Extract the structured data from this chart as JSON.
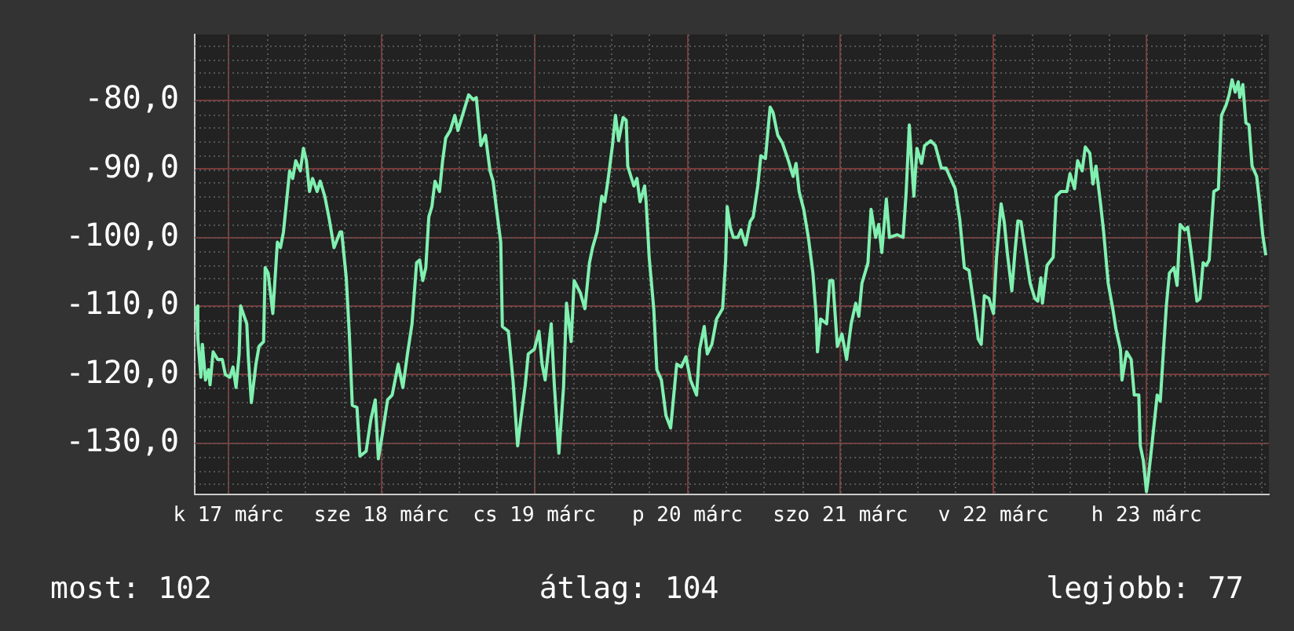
{
  "chart_data": {
    "type": "line",
    "x": [
      "--03-17T06:58",
      "--03-17T07:12",
      "--03-17T07:41",
      "--03-17T07:55",
      "--03-17T08:24",
      "--03-17T08:53",
      "--03-17T09:07",
      "--03-17T09:36",
      "--03-17T10:19",
      "--03-17T11:02",
      "--03-17T11:31",
      "--03-17T12:14",
      "--03-17T12:43",
      "--03-17T13:12",
      "--03-17T13:41",
      "--03-17T13:55",
      "--03-17T14:53",
      "--03-17T15:07",
      "--03-17T15:36",
      "--03-17T16:19",
      "--03-17T16:48",
      "--03-17T17:31",
      "--03-17T17:46",
      "--03-17T18:14",
      "--03-17T18:58",
      "--03-17T19:41",
      "--03-17T20:10",
      "--03-17T20:38",
      "--03-17T21:07",
      "--03-17T21:36",
      "--03-17T22:05",
      "--03-17T22:34",
      "--03-17T23:17",
      "--03-17T23:46",
      "--03-18T00:14",
      "--03-18T00:43",
      "--03-18T01:12",
      "--03-18T01:55",
      "--03-18T02:24",
      "--03-18T03:07",
      "--03-18T03:50",
      "--03-18T04:34",
      "--03-18T05:31",
      "--03-18T05:46",
      "--03-18T06:29",
      "--03-18T06:58",
      "--03-18T07:26",
      "--03-18T08:10",
      "--03-18T08:38",
      "--03-18T09:36",
      "--03-18T10:19",
      "--03-18T11:02",
      "--03-18T11:31",
      "--03-18T12:14",
      "--03-18T12:58",
      "--03-18T13:41",
      "--03-18T14:38",
      "--03-18T15:22",
      "--03-18T16:05",
      "--03-18T16:48",
      "--03-18T17:31",
      "--03-18T18:00",
      "--03-18T18:29",
      "--03-18T18:58",
      "--03-18T19:26",
      "--03-18T19:55",
      "--03-18T20:24",
      "--03-18T21:07",
      "--03-18T21:36",
      "--03-18T22:05",
      "--03-18T22:48",
      "--03-18T23:31",
      "--03-19T00:00",
      "--03-19T00:58",
      "--03-19T01:41",
      "--03-19T02:24",
      "--03-19T02:53",
      "--03-19T03:36",
      "--03-19T04:19",
      "--03-19T05:02",
      "--03-19T05:31",
      "--03-19T06:00",
      "--03-19T06:43",
      "--03-19T06:58",
      "--03-19T07:55",
      "--03-19T08:38",
      "--03-19T09:22",
      "--03-19T09:50",
      "--03-19T10:34",
      "--03-19T11:02",
      "--03-19T12:00",
      "--03-19T12:43",
      "--03-19T13:12",
      "--03-19T13:41",
      "--03-19T14:38",
      "--03-19T15:07",
      "--03-19T15:50",
      "--03-19T16:34",
      "--03-19T17:02",
      "--03-19T17:46",
      "--03-19T18:14",
      "--03-19T19:12",
      "--03-19T19:55",
      "--03-19T20:38",
      "--03-19T21:07",
      "--03-19T21:50",
      "--03-19T22:34",
      "--03-19T23:02",
      "--03-19T23:31",
      "--03-20T00:14",
      "--03-20T00:43",
      "--03-20T01:12",
      "--03-20T01:55",
      "--03-20T02:24",
      "--03-20T02:38",
      "--03-20T03:36",
      "--03-20T04:05",
      "--03-20T04:34",
      "--03-20T05:17",
      "--03-20T05:31",
      "--03-20T06:00",
      "--03-20T06:43",
      "--03-20T07:12",
      "--03-20T07:55",
      "--03-20T08:38",
      "--03-20T09:22",
      "--03-20T10:19",
      "--03-20T11:02",
      "--03-20T11:46",
      "--03-20T12:29",
      "--03-20T13:26",
      "--03-20T13:55",
      "--03-20T14:38",
      "--03-20T15:07",
      "--03-20T15:50",
      "--03-20T16:34",
      "--03-20T17:31",
      "--03-20T18:00",
      "--03-20T18:14",
      "--03-20T18:43",
      "--03-20T19:12",
      "--03-20T19:55",
      "--03-20T20:24",
      "--03-20T21:07",
      "--03-20T21:50",
      "--03-20T22:19",
      "--03-20T23:02",
      "--03-20T23:31",
      "--03-21T00:14",
      "--03-21T00:58",
      "--03-21T01:26",
      "--03-21T02:10",
      "--03-21T02:53",
      "--03-21T03:50",
      "--03-21T04:34",
      "--03-21T05:02",
      "--03-21T05:31",
      "--03-21T06:14",
      "--03-21T06:58",
      "--03-21T07:41",
      "--03-21T08:10",
      "--03-21T08:24",
      "--03-21T08:53",
      "--03-21T09:50",
      "--03-21T10:19",
      "--03-21T10:48",
      "--03-21T11:31",
      "--03-21T12:14",
      "--03-21T12:58",
      "--03-21T13:41",
      "--03-21T14:24",
      "--03-21T14:53",
      "--03-21T15:22",
      "--03-21T16:19",
      "--03-21T16:48",
      "--03-21T17:31",
      "--03-21T18:00",
      "--03-21T18:29",
      "--03-21T19:12",
      "--03-21T19:41",
      "--03-21T20:53",
      "--03-21T21:50",
      "--03-21T22:19",
      "--03-21T22:48",
      "--03-21T23:31",
      "--03-22T00:00",
      "--03-22T00:43",
      "--03-22T01:12",
      "--03-22T02:10",
      "--03-22T02:53",
      "--03-22T03:50",
      "--03-22T04:34",
      "--03-22T05:17",
      "--03-22T06:00",
      "--03-22T06:43",
      "--03-22T07:26",
      "--03-22T08:10",
      "--03-22T09:07",
      "--03-22T09:36",
      "--03-22T10:05",
      "--03-22T10:34",
      "--03-22T11:17",
      "--03-22T12:00",
      "--03-22T12:29",
      "--03-22T13:12",
      "--03-22T13:41",
      "--03-22T14:10",
      "--03-22T14:53",
      "--03-22T15:22",
      "--03-22T15:50",
      "--03-22T16:19",
      "--03-22T17:02",
      "--03-22T17:46",
      "--03-22T18:29",
      "--03-22T18:58",
      "--03-22T19:26",
      "--03-22T19:41",
      "--03-22T20:24",
      "--03-22T21:22",
      "--03-22T21:50",
      "--03-22T22:34",
      "--03-22T23:31",
      "--03-23T00:00",
      "--03-23T00:43",
      "--03-23T01:12",
      "--03-23T01:55",
      "--03-23T02:24",
      "--03-23T03:07",
      "--03-23T03:36",
      "--03-23T04:05",
      "--03-23T04:48",
      "--03-23T05:17",
      "--03-23T06:00",
      "--03-23T06:43",
      "--03-23T07:12",
      "--03-23T07:55",
      "--03-23T08:10",
      "--03-23T08:53",
      "--03-23T09:36",
      "--03-23T10:05",
      "--03-23T10:48",
      "--03-23T11:02",
      "--03-23T11:31",
      "--03-23T12:00",
      "--03-23T12:14",
      "--03-23T12:58",
      "--03-23T13:41",
      "--03-23T14:10",
      "--03-23T14:38",
      "--03-23T15:07",
      "--03-23T15:36",
      "--03-23T16:19",
      "--03-23T16:48",
      "--03-23T17:17",
      "--03-23T18:00",
      "--03-23T18:29",
      "--03-23T18:58",
      "--03-23T19:55",
      "--03-23T20:24",
      "--03-23T20:53",
      "--03-23T21:22",
      "--03-23T21:50",
      "--03-23T22:34",
      "--03-23T23:17",
      "--03-23T23:46",
      "--03-24T00:29",
      "--03-24T00:58",
      "--03-24T01:26",
      "--03-24T01:55",
      "--03-24T02:24",
      "--03-24T02:38",
      "--03-24T03:07",
      "--03-24T03:36",
      "--03-24T04:05",
      "--03-24T04:34",
      "--03-24T05:17",
      "--03-24T05:46",
      "--03-24T06:14",
      "--03-24T06:43"
    ],
    "series": [
      {
        "color": "#80f0b0",
        "values": [
          -110.0,
          -114.8,
          -120.4,
          -115.6,
          -120.8,
          -119.3,
          -121.5,
          -116.7,
          -117.8,
          -117.8,
          -120.0,
          -120.4,
          -118.9,
          -121.9,
          -117.0,
          -110.0,
          -112.6,
          -117.4,
          -124.1,
          -118.5,
          -115.9,
          -115.2,
          -104.4,
          -105.2,
          -111.1,
          -100.7,
          -101.5,
          -99.2,
          -94.8,
          -90.3,
          -91.4,
          -88.8,
          -90.3,
          -87.0,
          -88.8,
          -93.3,
          -91.4,
          -93.3,
          -91.8,
          -94.0,
          -97.4,
          -101.5,
          -99.2,
          -99.2,
          -105.9,
          -114.1,
          -124.5,
          -124.8,
          -131.9,
          -131.2,
          -126.7,
          -123.7,
          -132.3,
          -128.2,
          -123.7,
          -123.0,
          -118.5,
          -121.9,
          -117.0,
          -112.6,
          -103.7,
          -103.3,
          -106.3,
          -104.4,
          -97.0,
          -95.5,
          -91.8,
          -93.3,
          -88.8,
          -85.5,
          -84.4,
          -82.2,
          -84.4,
          -81.4,
          -79.2,
          -79.9,
          -79.6,
          -86.6,
          -85.1,
          -90.3,
          -91.8,
          -95.5,
          -100.7,
          -113.0,
          -113.7,
          -120.8,
          -130.4,
          -126.7,
          -121.5,
          -117.0,
          -116.3,
          -113.7,
          -118.5,
          -120.8,
          -112.6,
          -121.5,
          -131.5,
          -121.9,
          -109.6,
          -115.2,
          -106.3,
          -108.1,
          -110.4,
          -103.7,
          -101.5,
          -99.2,
          -94.0,
          -94.8,
          -91.8,
          -86.6,
          -82.2,
          -85.9,
          -82.5,
          -82.9,
          -89.6,
          -92.5,
          -91.4,
          -94.8,
          -92.5,
          -94.8,
          -102.9,
          -110.4,
          -119.3,
          -120.8,
          -126.0,
          -127.8,
          -118.5,
          -118.9,
          -117.4,
          -120.8,
          -123.0,
          -116.3,
          -113.0,
          -117.0,
          -115.6,
          -111.9,
          -110.4,
          -103.3,
          -95.5,
          -98.5,
          -100.0,
          -100.0,
          -98.9,
          -101.1,
          -97.7,
          -97.0,
          -92.5,
          -88.1,
          -88.5,
          -81.0,
          -81.8,
          -85.1,
          -86.2,
          -88.8,
          -91.1,
          -89.2,
          -93.3,
          -95.9,
          -100.0,
          -105.2,
          -111.1,
          -116.7,
          -111.9,
          -112.6,
          -106.3,
          -106.3,
          -115.9,
          -114.1,
          -117.8,
          -112.6,
          -109.6,
          -111.5,
          -106.7,
          -103.7,
          -95.9,
          -100.0,
          -98.1,
          -102.2,
          -94.4,
          -100.0,
          -99.6,
          -100.0,
          -93.3,
          -83.6,
          -94.0,
          -87.0,
          -89.2,
          -86.6,
          -85.9,
          -86.6,
          -89.9,
          -89.9,
          -91.4,
          -92.9,
          -97.4,
          -104.4,
          -104.8,
          -111.1,
          -114.8,
          -115.6,
          -108.5,
          -108.9,
          -111.1,
          -102.9,
          -95.1,
          -97.7,
          -102.2,
          -107.8,
          -102.2,
          -97.6,
          -97.7,
          -102.2,
          -106.7,
          -108.9,
          -109.3,
          -105.9,
          -109.6,
          -104.1,
          -102.9,
          -94.0,
          -93.3,
          -93.3,
          -90.7,
          -92.9,
          -88.8,
          -90.3,
          -86.8,
          -87.7,
          -92.2,
          -89.6,
          -95.1,
          -99.2,
          -106.7,
          -110.4,
          -113.3,
          -116.3,
          -120.8,
          -116.7,
          -117.8,
          -123.0,
          -123.0,
          -130.4,
          -132.6,
          -137.1,
          -135.6,
          -129.3,
          -123.0,
          -123.9,
          -117.0,
          -110.0,
          -105.2,
          -104.4,
          -107.0,
          -98.1,
          -98.9,
          -98.5,
          -101.8,
          -109.3,
          -108.9,
          -103.7,
          -104.1,
          -103.3,
          -93.3,
          -92.9,
          -82.2,
          -80.7,
          -79.2,
          -77.0,
          -78.8,
          -77.3,
          -79.6,
          -77.7,
          -83.3,
          -83.6,
          -89.6,
          -91.1,
          -95.1,
          -99.6,
          -102.6
        ]
      }
    ],
    "xlim": [
      "--03-17T06:43",
      "--03-24T07:12"
    ],
    "xticks": [
      {
        "value": "--03-17T12:00",
        "label": "k 17 márc"
      },
      {
        "value": "--03-18T12:00",
        "label": "sze 18 márc"
      },
      {
        "value": "--03-19T12:00",
        "label": "cs 19 márc"
      },
      {
        "value": "--03-20T12:00",
        "label": "p 20 márc"
      },
      {
        "value": "--03-21T12:00",
        "label": "szo 21 márc"
      },
      {
        "value": "--03-22T12:00",
        "label": "v 22 márc"
      },
      {
        "value": "--03-23T12:00",
        "label": "h 23 márc"
      }
    ],
    "ylim": [
      -137.5,
      -70.4
    ],
    "yticks": [
      {
        "value": -130,
        "label": "-130,0"
      },
      {
        "value": -120,
        "label": "-120,0"
      },
      {
        "value": -110,
        "label": "-110,0"
      },
      {
        "value": -100,
        "label": "-100,0"
      },
      {
        "value": -90,
        "label": "-90,0"
      },
      {
        "value": -80,
        "label": "-80,0"
      }
    ],
    "grid": true,
    "legend": false,
    "marker": "none",
    "line_style": "solid",
    "annotations": [
      "most: 102",
      "átlag: 104",
      "legjobb: 77"
    ]
  }
}
